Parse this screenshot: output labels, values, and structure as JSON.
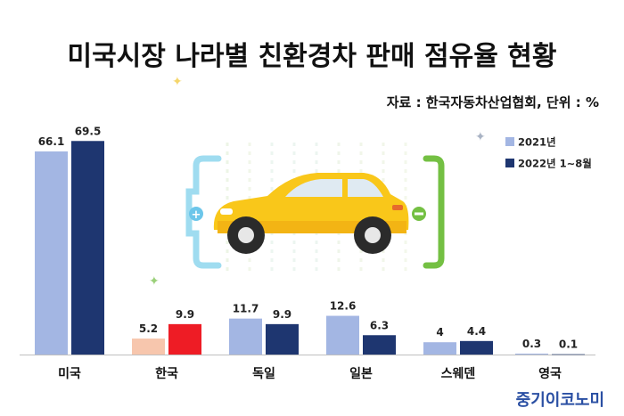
{
  "title": "미국시장 나라별 친환경차 판매 점유율 현황",
  "source": "자료 : 한국자동차산업협회, 단위 : %",
  "brand": "중기이코노미",
  "colors": {
    "s2021": "#a3b6e3",
    "s2022": "#1e3670",
    "korea2021": "#f7c6ad",
    "korea2022": "#ee1c25",
    "car_body": "#f9c71a",
    "bracket_left": "#9fdcf0",
    "bracket_right": "#74c043"
  },
  "chart_data": {
    "type": "bar",
    "title": "미국시장 나라별 친환경차 판매 점유율 현황",
    "categories": [
      "미국",
      "한국",
      "독일",
      "일본",
      "스웨덴",
      "영국"
    ],
    "series": [
      {
        "name": "2021년",
        "values": [
          66.1,
          5.2,
          11.7,
          12.6,
          4,
          0.3
        ]
      },
      {
        "name": "2022년 1~8월",
        "values": [
          69.5,
          9.9,
          9.9,
          6.3,
          4.4,
          0.1
        ]
      }
    ],
    "value_labels": [
      [
        "66.1",
        "5.2",
        "11.7",
        "12.6",
        "4",
        "0.3"
      ],
      [
        "69.5",
        "9.9",
        "9.9",
        "6.3",
        "4.4",
        "0.1"
      ]
    ],
    "unit": "%",
    "legend_position": "top-right",
    "grid": false,
    "highlight_category": "한국"
  }
}
